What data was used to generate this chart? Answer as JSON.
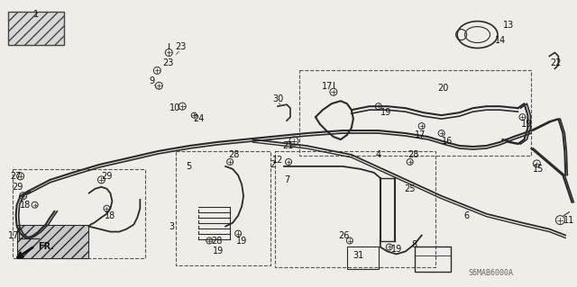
{
  "background_color": "#f0ede8",
  "fig_width": 6.4,
  "fig_height": 3.19,
  "dpi": 100,
  "diagram_code": "S6MAB6000A",
  "line_color": "#2a2a2a",
  "text_color": "#111111"
}
